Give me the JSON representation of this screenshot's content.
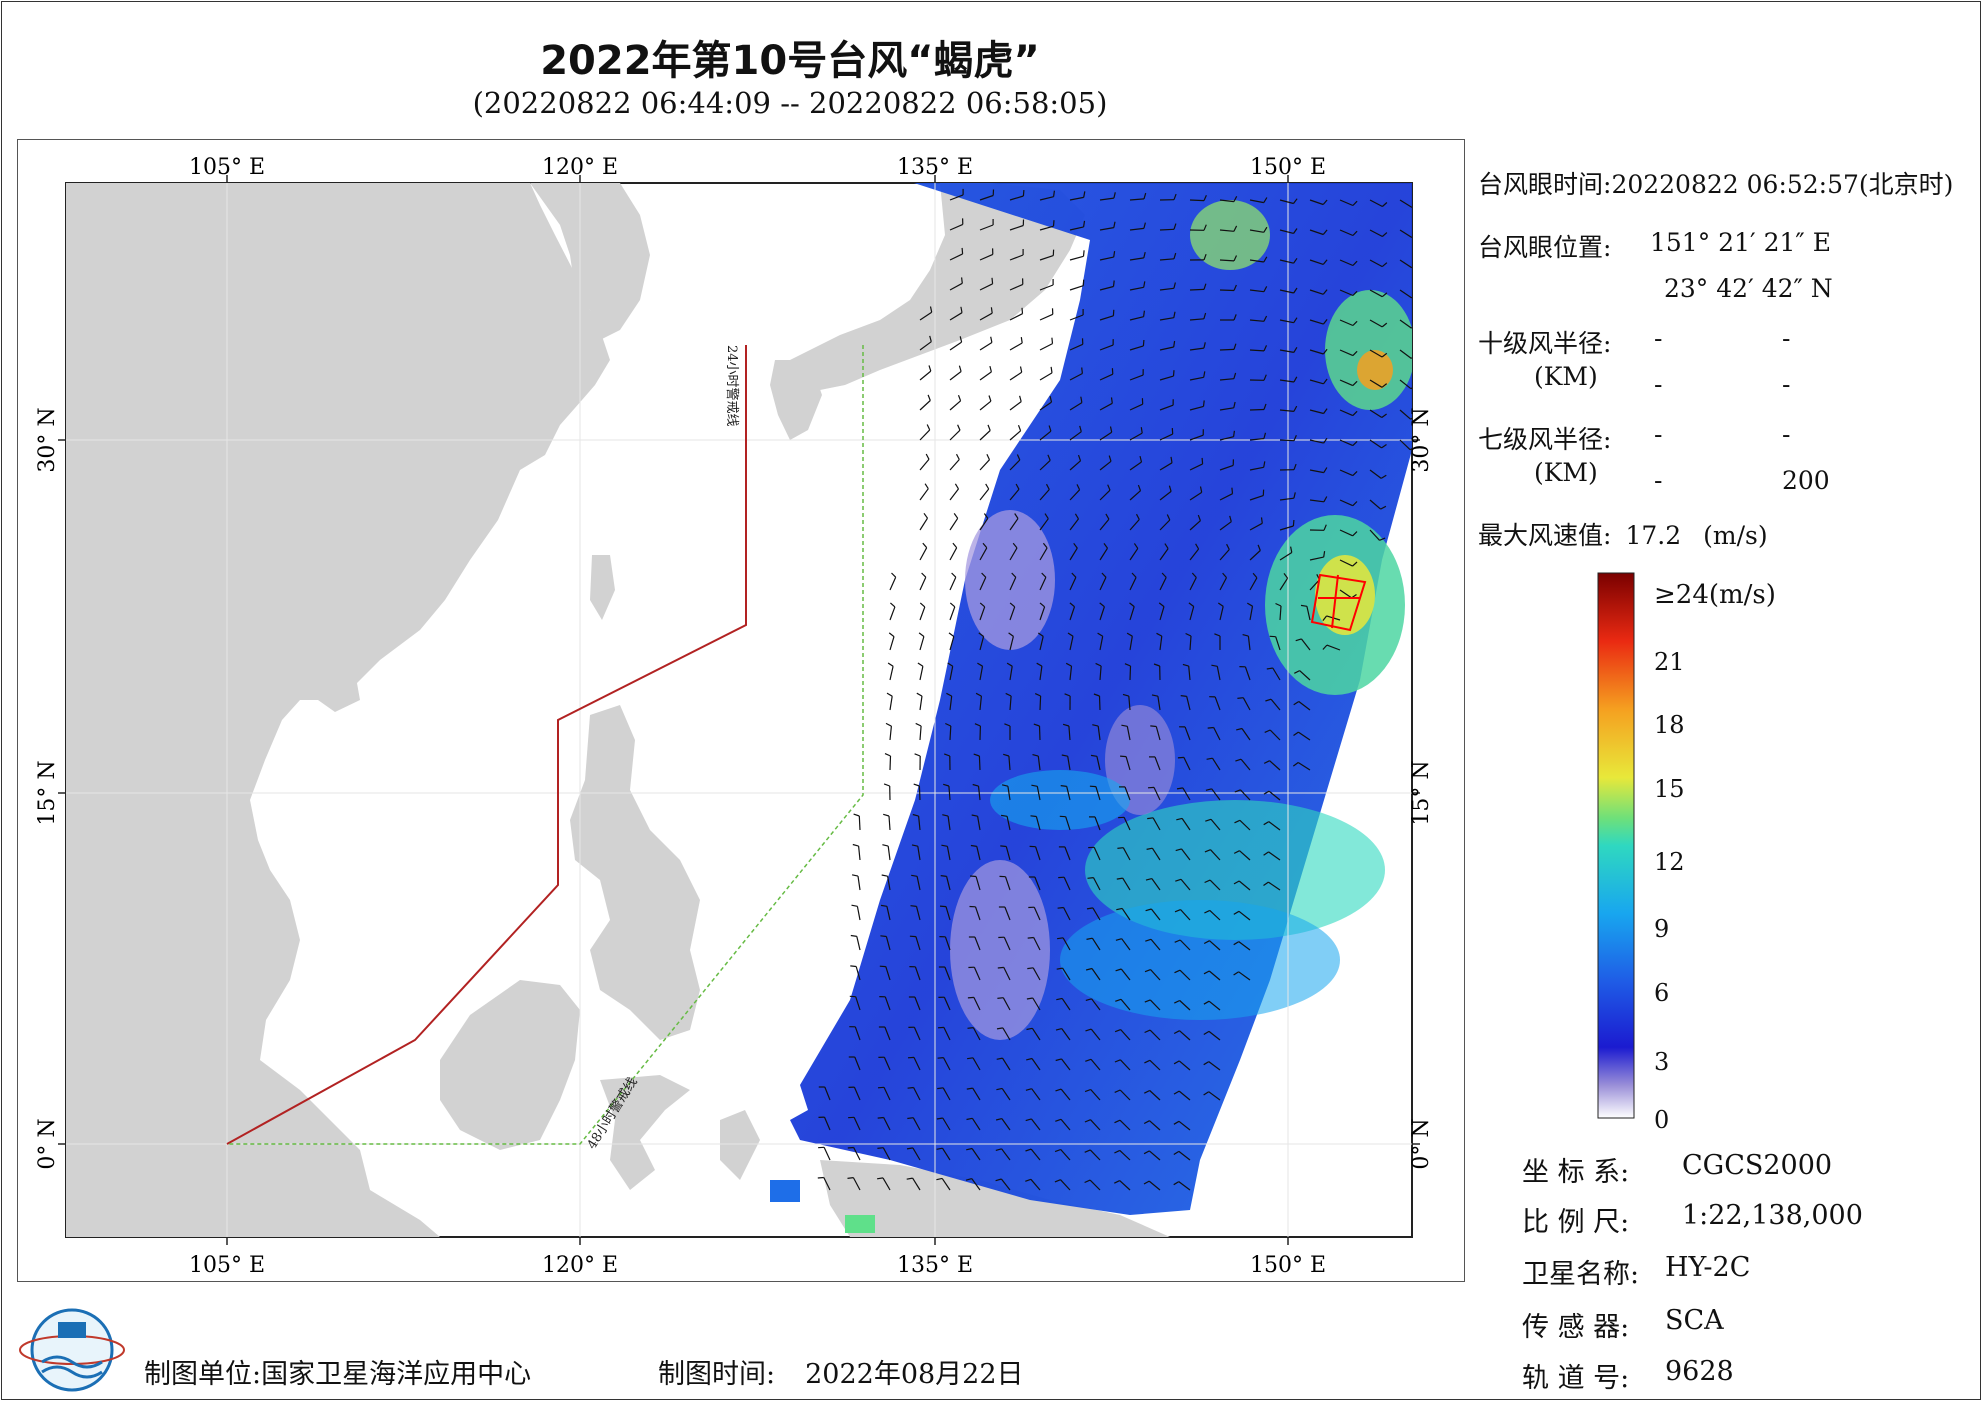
{
  "header": {
    "title": "2022年第10号台风“蝎虎”",
    "subtitle": "(20220822 06:44:09 -- 20220822 06:58:05)"
  },
  "map": {
    "lon_labels": [
      "105° E",
      "120° E",
      "135° E",
      "150° E"
    ],
    "lat_labels": [
      "30° N",
      "15° N",
      "0° N"
    ],
    "warning_24h": "24小时警戒线",
    "warning_48h": "48小时警戒线",
    "colors": {
      "land": "#d2d2d2",
      "warning_24h": "#c0392b",
      "warning_48h": "#66bb44",
      "typhoon_marker": "#ff0000"
    }
  },
  "info": {
    "eye_time_label": "台风眼时间:",
    "eye_time_value": "20220822 06:52:57(北京时)",
    "eye_pos_label": "台风眼位置:",
    "eye_lon": "151° 21′ 21″ E",
    "eye_lat": "23° 42′ 42″ N",
    "r10_label": "十级风半径:",
    "r7_label": "七级风半径:",
    "km_label": "(KM)",
    "r10_values": [
      "-",
      "-",
      "-",
      "-"
    ],
    "r7_values": [
      "-",
      "-",
      "-",
      "200"
    ],
    "max_wind_label": "最大风速值:",
    "max_wind_value": "17.2",
    "max_wind_unit": "(m/s)"
  },
  "legend": {
    "top_label": "≥24(m/s)",
    "ticks": [
      "21",
      "18",
      "15",
      "12",
      "9",
      "6",
      "3",
      "0"
    ]
  },
  "meta": {
    "crs_label": "坐 标 系:",
    "crs_value": "CGCS2000",
    "scale_label": "比 例 尺:",
    "scale_value": "1:22,138,000",
    "sat_label": "卫星名称:",
    "sat_value": "HY-2C",
    "sensor_label": "传 感 器:",
    "sensor_value": "SCA",
    "orbit_label": "轨 道 号:",
    "orbit_value": "9628"
  },
  "footer": {
    "unit_label": "制图单位:",
    "unit_value": "国家卫星海洋应用中心",
    "time_label": "制图时间:",
    "time_value": "2022年08月22日"
  }
}
